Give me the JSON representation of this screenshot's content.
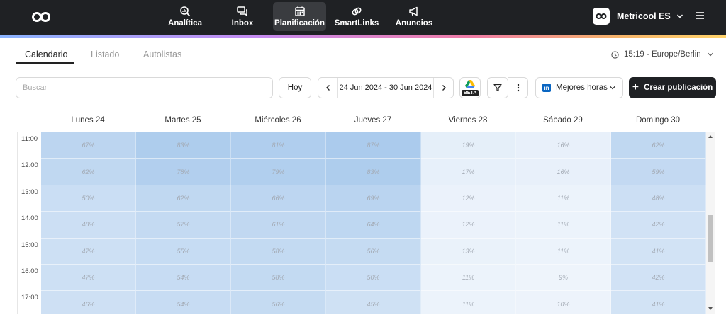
{
  "topbar": {
    "logo_icon": "infinity-logo",
    "nav": [
      {
        "label": "Analítica",
        "icon": "magnifier-chart-icon",
        "active": false
      },
      {
        "label": "Inbox",
        "icon": "chat-bubbles-icon",
        "active": false
      },
      {
        "label": "Planificación",
        "icon": "calendar-icon",
        "active": true
      },
      {
        "label": "SmartLinks",
        "icon": "link-icon",
        "active": false
      },
      {
        "label": "Anuncios",
        "icon": "megaphone-icon",
        "active": false
      }
    ],
    "account_name": "Metricool ES"
  },
  "tabs": [
    {
      "label": "Calendario",
      "active": true
    },
    {
      "label": "Listado",
      "active": false
    },
    {
      "label": "Autolistas",
      "active": false
    }
  ],
  "timezone": "15:19 - Europe/Berlin",
  "toolbar": {
    "search_placeholder": "Buscar",
    "today_label": "Hoy",
    "date_range": "24 Jun 2024 - 30 Jun 2024",
    "beta_label": "BETA",
    "best_hours_label": "Mejores horas",
    "create_label": "Crear publicación"
  },
  "calendar": {
    "days": [
      "Lunes 24",
      "Martes 25",
      "Miércoles 26",
      "Jueves 27",
      "Viernes 28",
      "Sábado 29",
      "Domingo 30"
    ],
    "times": [
      "11:00",
      "12:00",
      "13:00",
      "14:00",
      "15:00",
      "16:00",
      "17:00"
    ],
    "values": [
      [
        "67%",
        "83%",
        "81%",
        "87%",
        "19%",
        "16%",
        "62%"
      ],
      [
        "62%",
        "78%",
        "79%",
        "83%",
        "17%",
        "16%",
        "59%"
      ],
      [
        "50%",
        "62%",
        "66%",
        "69%",
        "12%",
        "11%",
        "48%"
      ],
      [
        "48%",
        "57%",
        "61%",
        "64%",
        "12%",
        "11%",
        "42%"
      ],
      [
        "47%",
        "55%",
        "58%",
        "56%",
        "13%",
        "11%",
        "41%"
      ],
      [
        "47%",
        "54%",
        "58%",
        "50%",
        "11%",
        "9%",
        "42%"
      ],
      [
        "46%",
        "54%",
        "56%",
        "45%",
        "11%",
        "10%",
        "41%"
      ]
    ]
  },
  "colors": {
    "topbar": "#1f2124",
    "heat_high": "#a8c9ec",
    "heat_low": "#f1f6fc"
  }
}
